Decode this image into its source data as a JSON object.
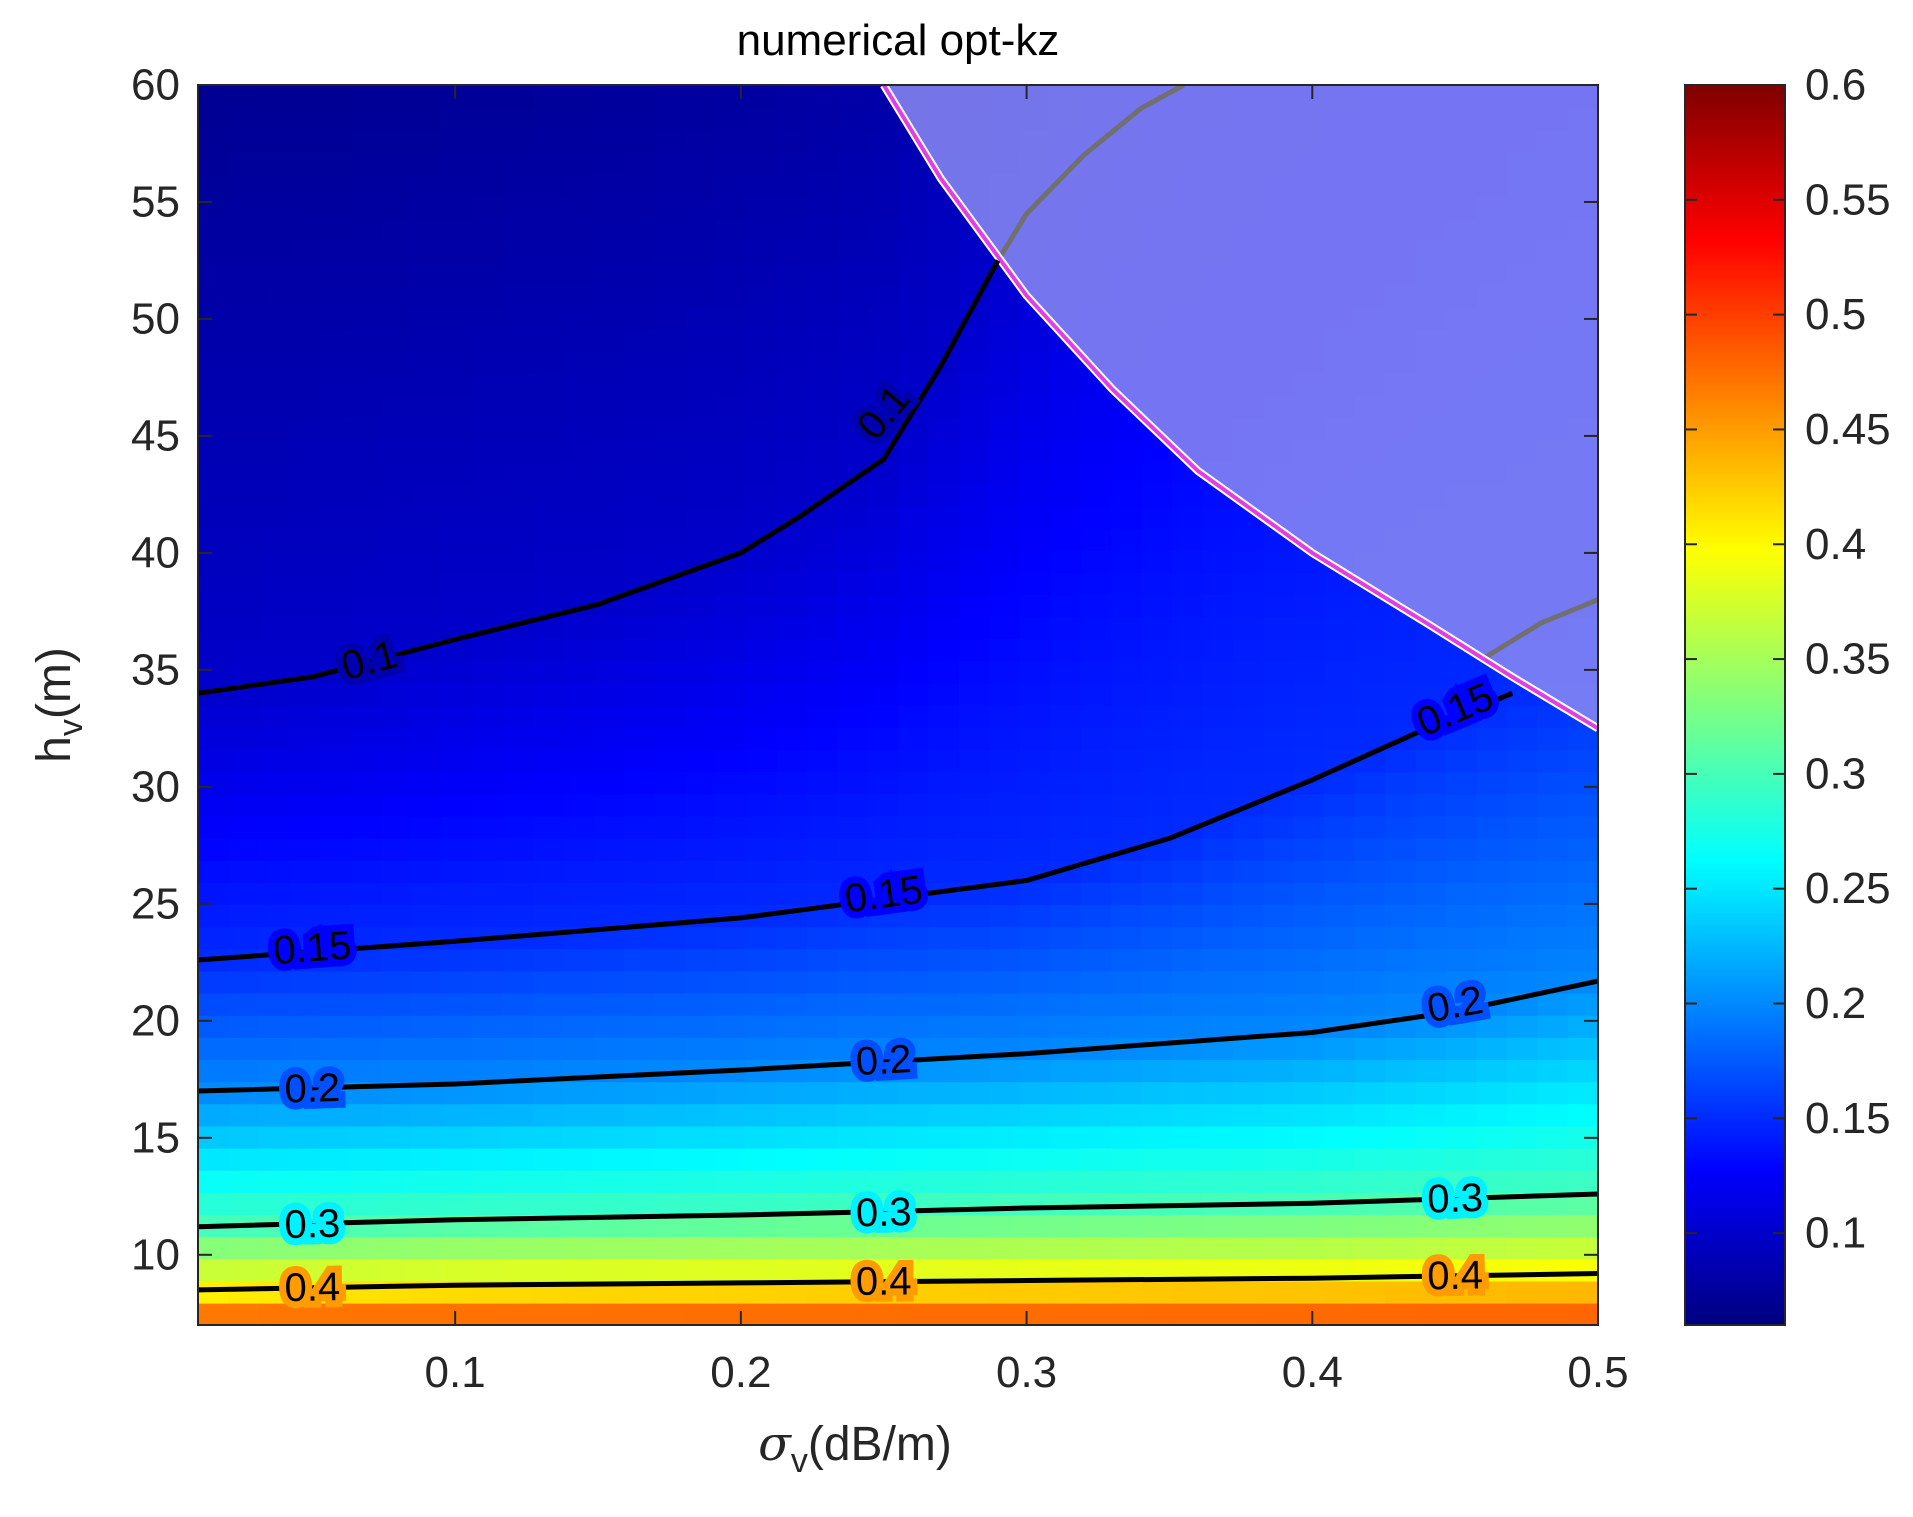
{
  "chart_data": {
    "type": "heatmap",
    "title": "numerical opt-kz",
    "xlabel": {
      "symbol": "σ",
      "sub": "v",
      "unit": "(dB/m)"
    },
    "ylabel": {
      "symbol": "h",
      "sub": "v",
      "unit": "(m)"
    },
    "xlim": [
      0.01,
      0.5
    ],
    "ylim": [
      7,
      60
    ],
    "x_ticks": [
      0.1,
      0.2,
      0.3,
      0.4,
      0.5
    ],
    "x_tick_labels": [
      "0.1",
      "0.2",
      "0.3",
      "0.4",
      "0.5"
    ],
    "y_ticks": [
      10,
      15,
      20,
      25,
      30,
      35,
      40,
      45,
      50,
      55,
      60
    ],
    "y_tick_labels": [
      "10",
      "15",
      "20",
      "25",
      "30",
      "35",
      "40",
      "45",
      "50",
      "55",
      "60"
    ],
    "colorbar": {
      "clim": [
        0.06,
        0.6
      ],
      "ticks": [
        0.1,
        0.15,
        0.2,
        0.25,
        0.3,
        0.35,
        0.4,
        0.45,
        0.5,
        0.55,
        0.6
      ],
      "tick_labels": [
        "0.1",
        "0.15",
        "0.2",
        "0.25",
        "0.3",
        "0.35",
        "0.4",
        "0.45",
        "0.5",
        "0.55",
        "0.6"
      ],
      "colormap": "jet"
    },
    "contours": [
      {
        "level": 0.1,
        "points": [
          [
            0.01,
            34
          ],
          [
            0.05,
            34.7
          ],
          [
            0.1,
            36.3
          ],
          [
            0.15,
            37.8
          ],
          [
            0.2,
            40
          ],
          [
            0.22,
            41.5
          ],
          [
            0.25,
            44
          ],
          [
            0.27,
            48
          ],
          [
            0.29,
            52.5
          ]
        ],
        "labels": [
          {
            "text": "0.1",
            "at": [
              0.07,
              35.4
            ]
          },
          {
            "text": "0.1",
            "at": [
              0.25,
              46
            ]
          }
        ]
      },
      {
        "level": 0.15,
        "points": [
          [
            0.01,
            22.6
          ],
          [
            0.1,
            23.4
          ],
          [
            0.2,
            24.4
          ],
          [
            0.3,
            26
          ],
          [
            0.35,
            27.8
          ],
          [
            0.4,
            30.3
          ],
          [
            0.44,
            32.5
          ],
          [
            0.47,
            34
          ]
        ],
        "labels": [
          {
            "text": "0.15",
            "at": [
              0.05,
              23.1
            ]
          },
          {
            "text": "0.15",
            "at": [
              0.25,
              25.4
            ]
          },
          {
            "text": "0.15",
            "at": [
              0.45,
              33.3
            ]
          }
        ]
      },
      {
        "level": 0.2,
        "points": [
          [
            0.01,
            17
          ],
          [
            0.1,
            17.3
          ],
          [
            0.2,
            17.9
          ],
          [
            0.3,
            18.6
          ],
          [
            0.4,
            19.5
          ],
          [
            0.45,
            20.4
          ],
          [
            0.5,
            21.7
          ]
        ],
        "labels": [
          {
            "text": "0.2",
            "at": [
              0.05,
              17.1
            ]
          },
          {
            "text": "0.2",
            "at": [
              0.25,
              18.3
            ]
          },
          {
            "text": "0.2",
            "at": [
              0.45,
              20.7
            ]
          }
        ]
      },
      {
        "level": 0.3,
        "points": [
          [
            0.01,
            11.2
          ],
          [
            0.1,
            11.5
          ],
          [
            0.2,
            11.7
          ],
          [
            0.3,
            12
          ],
          [
            0.4,
            12.2
          ],
          [
            0.5,
            12.6
          ]
        ],
        "labels": [
          {
            "text": "0.3",
            "at": [
              0.05,
              11.3
            ]
          },
          {
            "text": "0.3",
            "at": [
              0.25,
              11.8
            ]
          },
          {
            "text": "0.3",
            "at": [
              0.45,
              12.4
            ]
          }
        ]
      },
      {
        "level": 0.4,
        "points": [
          [
            0.01,
            8.5
          ],
          [
            0.1,
            8.7
          ],
          [
            0.2,
            8.8
          ],
          [
            0.3,
            8.9
          ],
          [
            0.4,
            9
          ],
          [
            0.5,
            9.2
          ]
        ],
        "labels": [
          {
            "text": "0.4",
            "at": [
              0.05,
              8.6
            ]
          },
          {
            "text": "0.4",
            "at": [
              0.25,
              8.85
            ]
          },
          {
            "text": "0.4",
            "at": [
              0.45,
              9.1
            ]
          }
        ]
      }
    ],
    "shaded_region": {
      "fill": "#8a8af2",
      "boundary_color": "#e040e0",
      "boundary": [
        [
          0.25,
          60
        ],
        [
          0.27,
          56
        ],
        [
          0.3,
          51
        ],
        [
          0.33,
          47
        ],
        [
          0.36,
          43.5
        ],
        [
          0.4,
          40
        ],
        [
          0.44,
          37
        ],
        [
          0.47,
          34.7
        ],
        [
          0.5,
          32.5
        ]
      ]
    },
    "grey_line": {
      "color": "#707070",
      "segments": [
        [
          [
            0.29,
            52.5
          ],
          [
            0.3,
            54.5
          ],
          [
            0.32,
            57
          ],
          [
            0.34,
            59
          ],
          [
            0.355,
            60
          ]
        ],
        [
          [
            0.46,
            35.5
          ],
          [
            0.48,
            37
          ],
          [
            0.5,
            38
          ]
        ]
      ]
    }
  }
}
